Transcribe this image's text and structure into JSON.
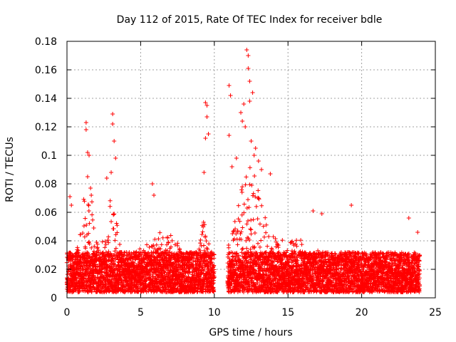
{
  "chart_data": {
    "type": "scatter",
    "title": "Day 112 of 2015, Rate Of TEC Index for receiver bdle",
    "xlabel": "GPS time / hours",
    "ylabel": "ROTI / TECUs",
    "xlim": [
      0,
      25
    ],
    "ylim": [
      0,
      0.18
    ],
    "x_ticks": [
      0,
      5,
      10,
      15,
      20,
      25
    ],
    "x_tick_labels": [
      "0",
      "5",
      "10",
      "15",
      "20",
      "25"
    ],
    "y_ticks": [
      0,
      0.02,
      0.04,
      0.06,
      0.08,
      0.1,
      0.12,
      0.14,
      0.16,
      0.18
    ],
    "y_tick_labels": [
      "0",
      "0.02",
      "0.04",
      "0.06",
      "0.08",
      "0.1",
      "0.12",
      "0.14",
      "0.16",
      "0.18"
    ],
    "grid": true,
    "marker": "+",
    "color": "#ff0000",
    "series": [
      {
        "name": "ROTI",
        "gap_hours": [
          10.0,
          10.9
        ],
        "highlights": [
          {
            "x": 0.2,
            "y": 0.071
          },
          {
            "x": 0.3,
            "y": 0.065
          },
          {
            "x": 1.3,
            "y": 0.123
          },
          {
            "x": 1.3,
            "y": 0.118
          },
          {
            "x": 1.4,
            "y": 0.102
          },
          {
            "x": 1.5,
            "y": 0.1
          },
          {
            "x": 1.4,
            "y": 0.085
          },
          {
            "x": 1.6,
            "y": 0.077
          },
          {
            "x": 2.7,
            "y": 0.084
          },
          {
            "x": 3.1,
            "y": 0.129
          },
          {
            "x": 3.1,
            "y": 0.122
          },
          {
            "x": 3.2,
            "y": 0.11
          },
          {
            "x": 3.3,
            "y": 0.098
          },
          {
            "x": 3.0,
            "y": 0.088
          },
          {
            "x": 5.8,
            "y": 0.08
          },
          {
            "x": 5.9,
            "y": 0.072
          },
          {
            "x": 9.4,
            "y": 0.137
          },
          {
            "x": 9.5,
            "y": 0.135
          },
          {
            "x": 9.5,
            "y": 0.127
          },
          {
            "x": 9.6,
            "y": 0.115
          },
          {
            "x": 9.4,
            "y": 0.112
          },
          {
            "x": 9.3,
            "y": 0.088
          },
          {
            "x": 11.0,
            "y": 0.149
          },
          {
            "x": 11.1,
            "y": 0.142
          },
          {
            "x": 11.0,
            "y": 0.114
          },
          {
            "x": 11.2,
            "y": 0.092
          },
          {
            "x": 12.2,
            "y": 0.174
          },
          {
            "x": 12.3,
            "y": 0.17
          },
          {
            "x": 12.3,
            "y": 0.161
          },
          {
            "x": 12.4,
            "y": 0.152
          },
          {
            "x": 12.6,
            "y": 0.144
          },
          {
            "x": 12.4,
            "y": 0.138
          },
          {
            "x": 12.0,
            "y": 0.136
          },
          {
            "x": 11.8,
            "y": 0.13
          },
          {
            "x": 11.9,
            "y": 0.124
          },
          {
            "x": 12.1,
            "y": 0.12
          },
          {
            "x": 12.5,
            "y": 0.11
          },
          {
            "x": 12.8,
            "y": 0.105
          },
          {
            "x": 12.7,
            "y": 0.1
          },
          {
            "x": 13.0,
            "y": 0.096
          },
          {
            "x": 13.2,
            "y": 0.09
          },
          {
            "x": 13.8,
            "y": 0.087
          },
          {
            "x": 11.5,
            "y": 0.098
          },
          {
            "x": 16.7,
            "y": 0.061
          },
          {
            "x": 17.3,
            "y": 0.059
          },
          {
            "x": 19.3,
            "y": 0.065
          },
          {
            "x": 23.2,
            "y": 0.056
          },
          {
            "x": 23.8,
            "y": 0.046
          }
        ]
      }
    ]
  }
}
